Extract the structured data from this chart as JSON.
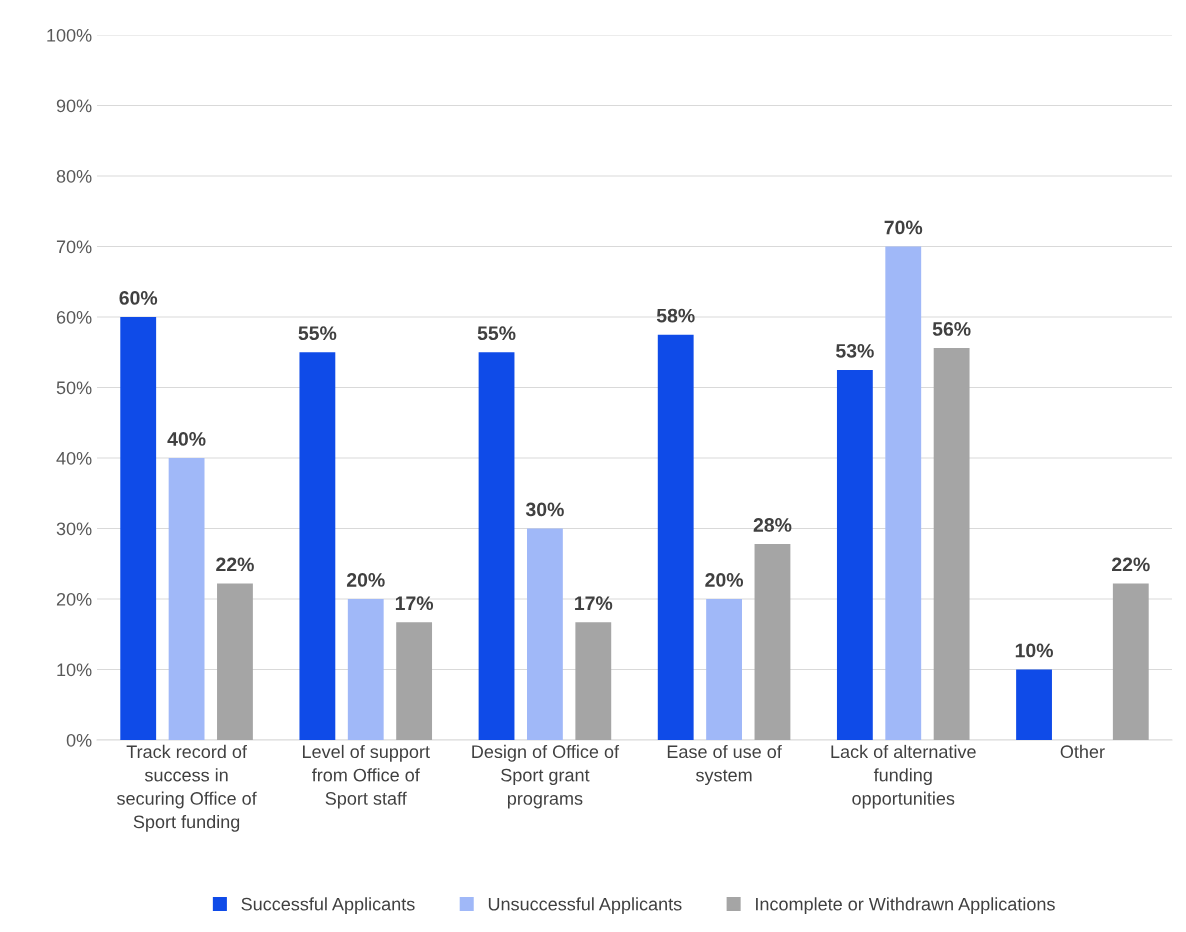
{
  "chart_data": {
    "type": "bar",
    "categories": [
      "Track record of success in securing Office of Sport funding",
      "Level of support from Office of Sport staff",
      "Design of Office of Sport grant programs",
      "Ease of use of system",
      "Lack of alternative funding opportunities",
      "Other"
    ],
    "series": [
      {
        "name": "Successful Applicants",
        "color": "#0f4be8",
        "values": [
          60,
          55,
          55,
          57.5,
          52.5,
          10
        ],
        "value_labels": [
          "60%",
          "55%",
          "55%",
          "58%",
          "53%",
          "10%"
        ]
      },
      {
        "name": "Unsuccessful Applicants",
        "color": "#a0b8f8",
        "values": [
          40,
          20,
          30,
          20,
          70,
          null
        ],
        "value_labels": [
          "40%",
          "20%",
          "30%",
          "20%",
          "70%",
          null
        ]
      },
      {
        "name": "Incomplete or Withdrawn Applications",
        "color": "#a5a5a5",
        "values": [
          22.2,
          16.7,
          16.7,
          27.8,
          55.6,
          22.2
        ],
        "value_labels": [
          "22%",
          "17%",
          "17%",
          "28%",
          "56%",
          "22%"
        ]
      }
    ],
    "ylim": [
      0,
      100
    ],
    "yticks": [
      {
        "value": 0,
        "label": "0%"
      },
      {
        "value": 10,
        "label": "10%"
      },
      {
        "value": 20,
        "label": "20%"
      },
      {
        "value": 30,
        "label": "30%"
      },
      {
        "value": 40,
        "label": "40%"
      },
      {
        "value": 50,
        "label": "50%"
      },
      {
        "value": 60,
        "label": "60%"
      },
      {
        "value": 70,
        "label": "70%"
      },
      {
        "value": 80,
        "label": "80%"
      },
      {
        "value": 90,
        "label": "90%"
      },
      {
        "value": 100,
        "label": "100%"
      }
    ],
    "grid": "y",
    "legend": "bottom"
  }
}
